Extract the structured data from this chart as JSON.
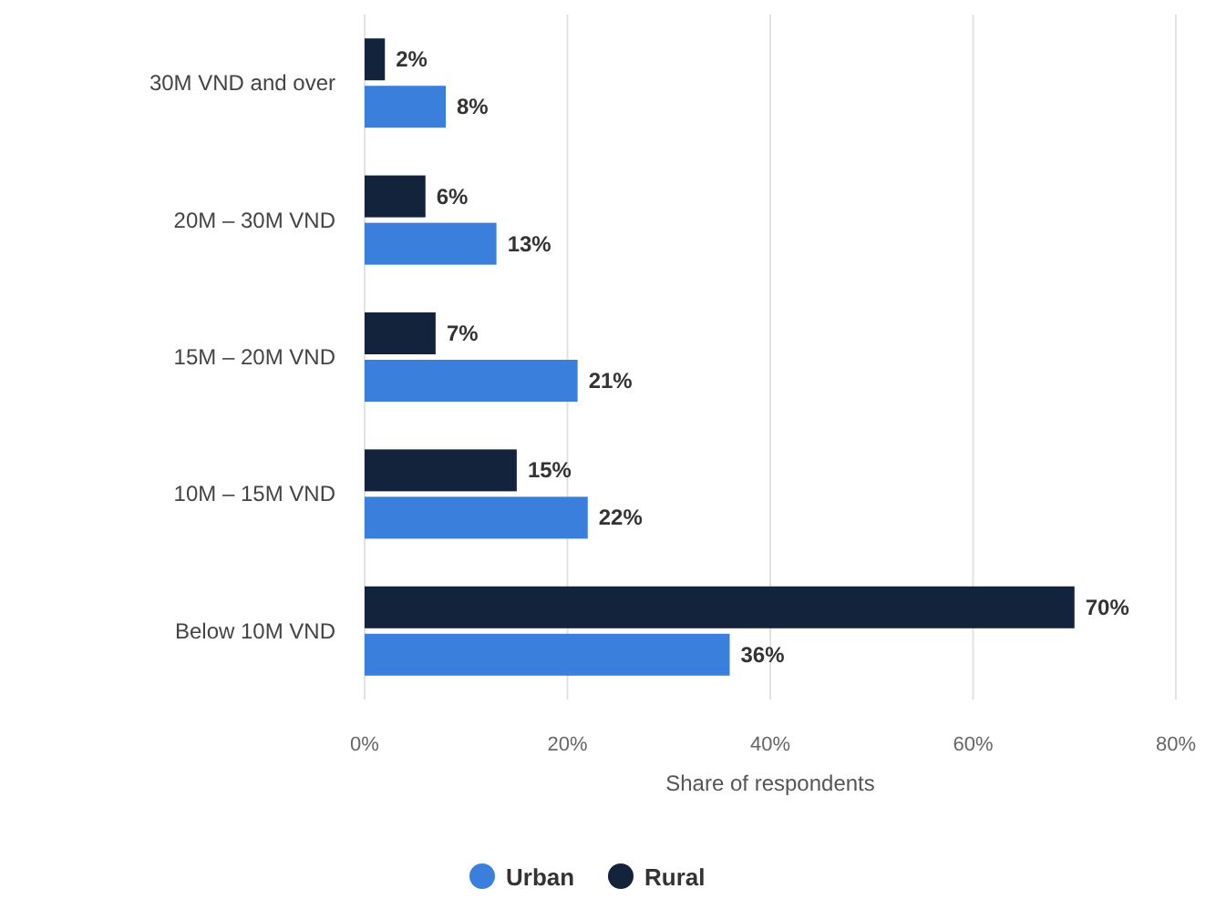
{
  "chart_data": {
    "type": "bar",
    "orientation": "horizontal",
    "categories": [
      "30M VND and over",
      "20M – 30M VND",
      "15M – 20M VND",
      "10M – 15M VND",
      "Below 10M VND"
    ],
    "series": [
      {
        "name": "Urban",
        "color": "#3a7fdc",
        "values": [
          8,
          13,
          21,
          22,
          36
        ]
      },
      {
        "name": "Rural",
        "color": "#14233c",
        "values": [
          2,
          6,
          7,
          15,
          70
        ]
      }
    ],
    "xlabel": "Share of respondents",
    "xlim": [
      0,
      80
    ],
    "xticks": [
      {
        "value": 0,
        "label": "0%"
      },
      {
        "value": 20,
        "label": "20%"
      },
      {
        "value": 40,
        "label": "40%"
      },
      {
        "value": 60,
        "label": "60%"
      },
      {
        "value": 80,
        "label": "80%"
      }
    ],
    "value_labels": [
      [
        "8%",
        "13%",
        "21%",
        "22%",
        "36%"
      ],
      [
        "2%",
        "6%",
        "7%",
        "15%",
        "70%"
      ]
    ],
    "grid": "x",
    "legend": "bottom"
  }
}
